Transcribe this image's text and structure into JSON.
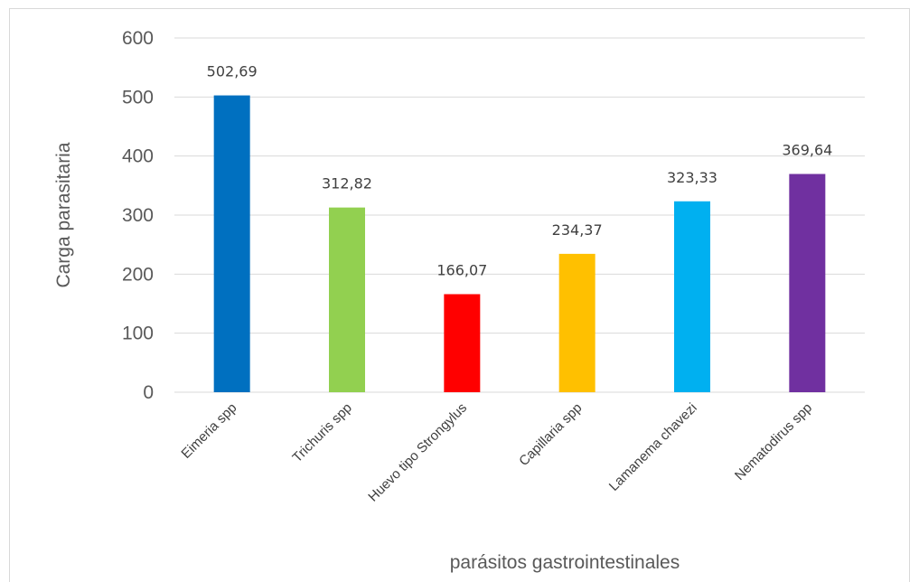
{
  "chart_data": {
    "type": "bar",
    "categories": [
      "Eimeria spp",
      "Trichuris spp",
      "Huevo tipo Strongylus",
      "Capillaria spp",
      "Lamanema chavezi",
      "Nematodirus spp"
    ],
    "values": [
      502.69,
      312.82,
      166.07,
      234.37,
      323.33,
      369.64
    ],
    "data_labels": [
      "502,69",
      "312,82",
      "166,07",
      "234,37",
      "323,33",
      "369,64"
    ],
    "colors": [
      "#0070c0",
      "#92d050",
      "#ff0000",
      "#ffc000",
      "#00b0f0",
      "#7030a0"
    ],
    "xlabel": "parásitos gastrointestinales",
    "ylabel": "Carga parasitaria",
    "ylim": [
      0,
      600
    ],
    "yticks": [
      0,
      100,
      200,
      300,
      400,
      500,
      600
    ],
    "grid": true,
    "legend": "none"
  }
}
